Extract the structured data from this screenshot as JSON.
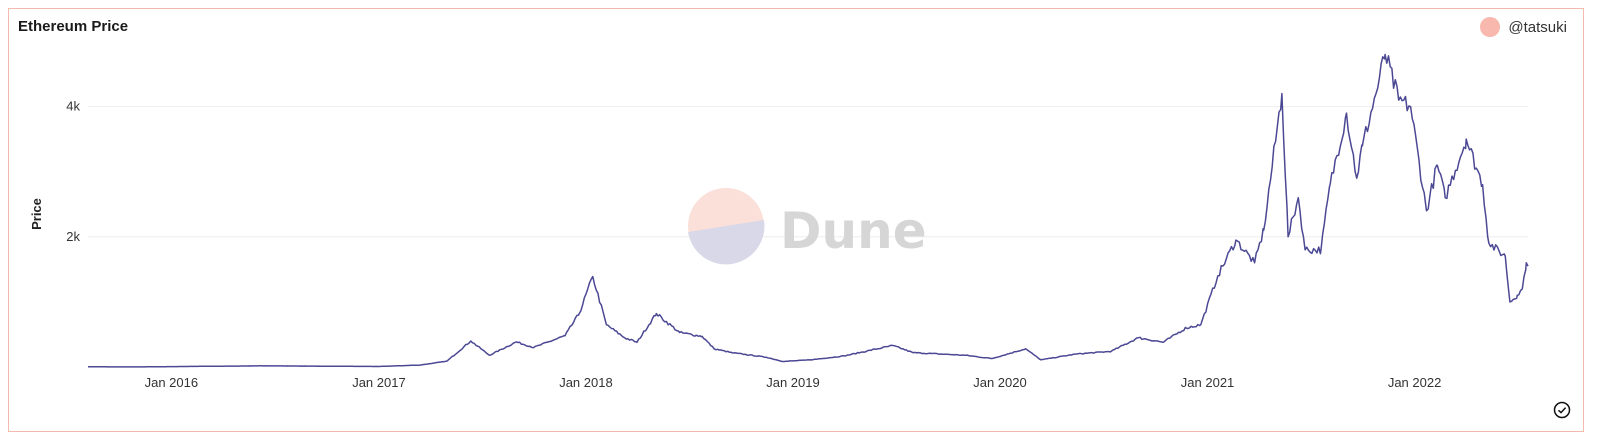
{
  "card": {
    "title": "Ethereum Price",
    "author": "@tatsuki",
    "watermark": "Dune"
  },
  "colors": {
    "line": "#4b4894",
    "border": "#f3b9ac",
    "avatar": "#f8b8ae"
  },
  "icons": {
    "avatar": "avatar-icon",
    "status": "check-circle-icon"
  },
  "chart_data": {
    "type": "line",
    "title": "Ethereum Price",
    "ylabel": "Price",
    "xlabel": "",
    "grid": true,
    "x_range": [
      "2015-08-07",
      "2022-07-20"
    ],
    "ylim": [
      0,
      4900
    ],
    "y_ticks": [
      {
        "value": 2000,
        "label": "2k"
      },
      {
        "value": 4000,
        "label": "4k"
      }
    ],
    "x_ticks": [
      {
        "date": "2016-01-01",
        "label": "Jan 2016"
      },
      {
        "date": "2017-01-01",
        "label": "Jan 2017"
      },
      {
        "date": "2018-01-01",
        "label": "Jan 2018"
      },
      {
        "date": "2019-01-01",
        "label": "Jan 2019"
      },
      {
        "date": "2020-01-01",
        "label": "Jan 2020"
      },
      {
        "date": "2021-01-01",
        "label": "Jan 2021"
      },
      {
        "date": "2022-01-01",
        "label": "Jan 2022"
      }
    ],
    "series": [
      {
        "points": [
          [
            "2015-08-07",
            3
          ],
          [
            "2015-11-01",
            1
          ],
          [
            "2016-03-01",
            11
          ],
          [
            "2016-06-15",
            18
          ],
          [
            "2016-10-01",
            12
          ],
          [
            "2017-01-01",
            8
          ],
          [
            "2017-03-15",
            30
          ],
          [
            "2017-05-01",
            90
          ],
          [
            "2017-06-12",
            400
          ],
          [
            "2017-07-15",
            180
          ],
          [
            "2017-08-31",
            385
          ],
          [
            "2017-10-01",
            300
          ],
          [
            "2017-11-25",
            480
          ],
          [
            "2017-12-20",
            820
          ],
          [
            "2018-01-13",
            1390
          ],
          [
            "2018-02-06",
            650
          ],
          [
            "2018-03-10",
            450
          ],
          [
            "2018-04-01",
            380
          ],
          [
            "2018-05-05",
            820
          ],
          [
            "2018-06-15",
            530
          ],
          [
            "2018-07-25",
            470
          ],
          [
            "2018-08-15",
            280
          ],
          [
            "2018-09-15",
            220
          ],
          [
            "2018-11-15",
            150
          ],
          [
            "2018-12-14",
            85
          ],
          [
            "2019-02-01",
            110
          ],
          [
            "2019-04-01",
            170
          ],
          [
            "2019-06-26",
            330
          ],
          [
            "2019-08-01",
            220
          ],
          [
            "2019-11-01",
            180
          ],
          [
            "2019-12-18",
            130
          ],
          [
            "2020-02-15",
            280
          ],
          [
            "2020-03-13",
            110
          ],
          [
            "2020-05-15",
            200
          ],
          [
            "2020-07-15",
            240
          ],
          [
            "2020-09-01",
            450
          ],
          [
            "2020-10-15",
            380
          ],
          [
            "2020-11-24",
            600
          ],
          [
            "2020-12-20",
            650
          ],
          [
            "2021-01-19",
            1400
          ],
          [
            "2021-02-20",
            1950
          ],
          [
            "2021-03-25",
            1600
          ],
          [
            "2021-04-10",
            2100
          ],
          [
            "2021-05-12",
            4200
          ],
          [
            "2021-05-23",
            2000
          ],
          [
            "2021-06-10",
            2600
          ],
          [
            "2021-06-22",
            1800
          ],
          [
            "2021-07-20",
            1800
          ],
          [
            "2021-08-05",
            2800
          ],
          [
            "2021-09-03",
            3900
          ],
          [
            "2021-09-21",
            2900
          ],
          [
            "2021-10-01",
            3400
          ],
          [
            "2021-10-25",
            4200
          ],
          [
            "2021-11-10",
            4800
          ],
          [
            "2021-12-04",
            4100
          ],
          [
            "2021-12-25",
            4000
          ],
          [
            "2022-01-22",
            2400
          ],
          [
            "2022-02-10",
            3100
          ],
          [
            "2022-02-24",
            2600
          ],
          [
            "2022-04-02",
            3500
          ],
          [
            "2022-05-01",
            2800
          ],
          [
            "2022-05-12",
            1900
          ],
          [
            "2022-06-10",
            1700
          ],
          [
            "2022-06-18",
            1000
          ],
          [
            "2022-07-01",
            1100
          ],
          [
            "2022-07-10",
            1200
          ],
          [
            "2022-07-17",
            1600
          ],
          [
            "2022-07-20",
            1550
          ]
        ]
      }
    ]
  }
}
